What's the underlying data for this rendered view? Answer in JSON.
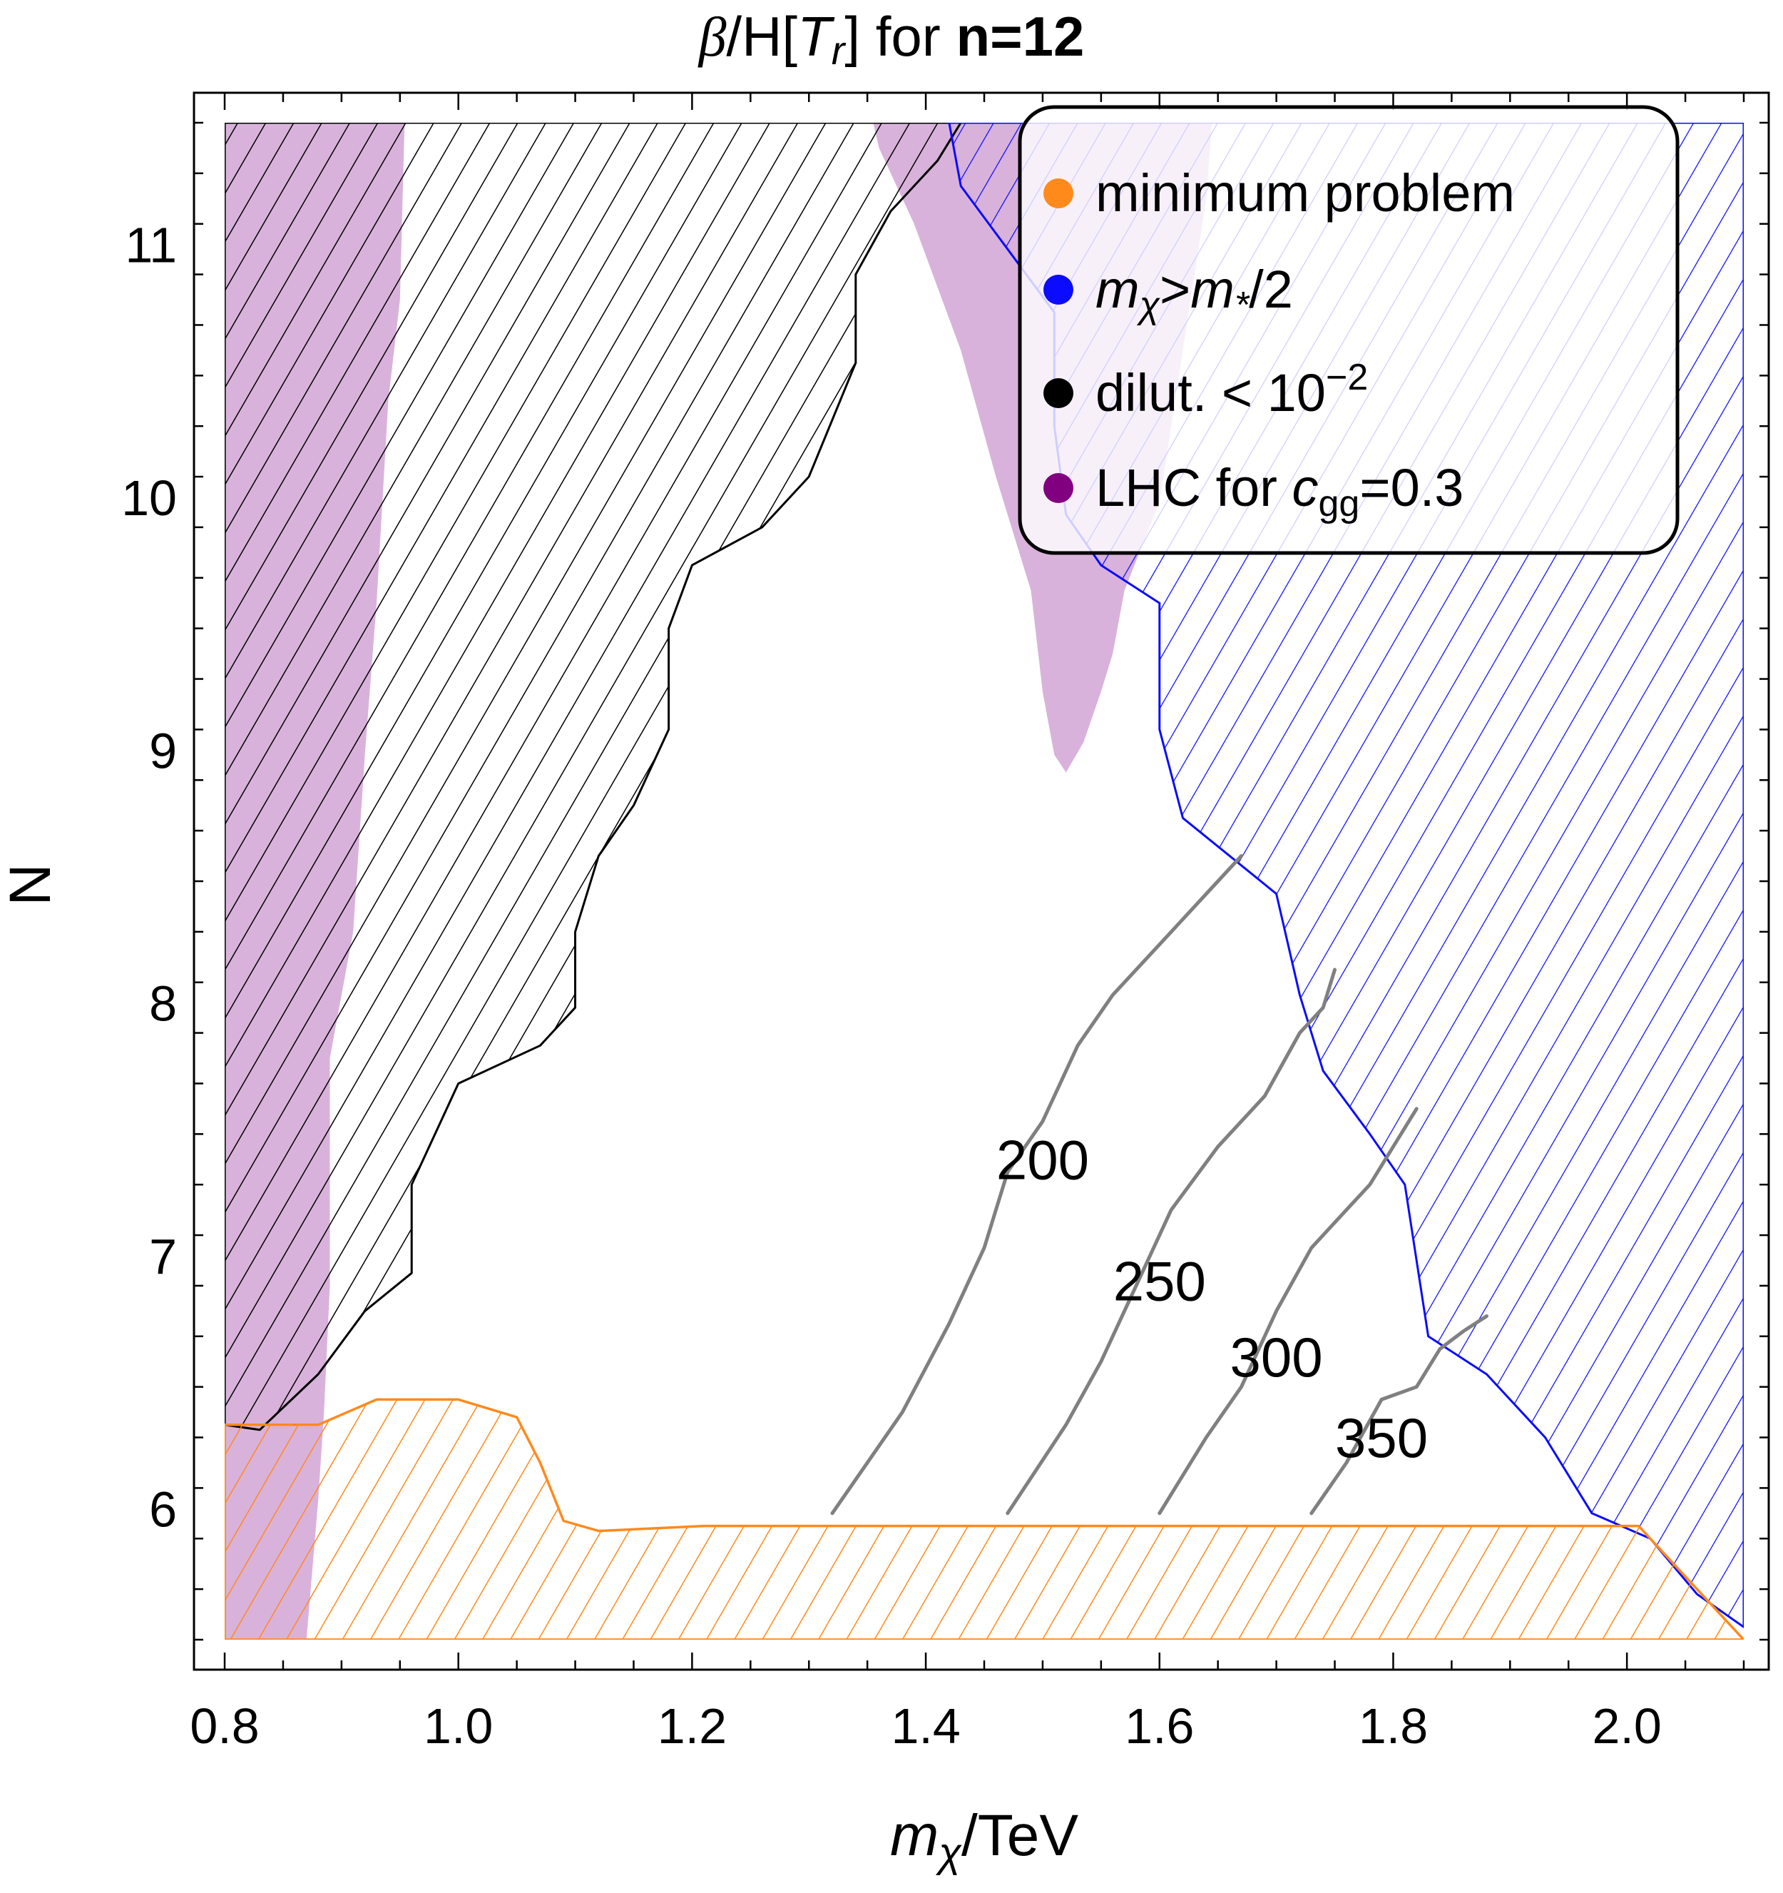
{
  "chart_data": {
    "type": "contour",
    "title": {
      "prefix": "β",
      "mid": "/H[",
      "var": "T",
      "sub": "r",
      "suffix": "] for ",
      "bold": "n=12"
    },
    "xlabel": {
      "var": "m",
      "sub": "χ",
      "rest": "/TeV"
    },
    "ylabel": "N",
    "xlim": [
      0.8,
      2.1
    ],
    "ylim": [
      5.5,
      11.5
    ],
    "x_ticks": [
      0.8,
      1.0,
      1.2,
      1.4,
      1.6,
      1.8,
      2.0
    ],
    "x_tick_labels": [
      "0.8",
      "1.0",
      "1.2",
      "1.4",
      "1.6",
      "1.8",
      "2.0"
    ],
    "y_ticks": [
      6,
      7,
      8,
      9,
      10,
      11
    ],
    "y_tick_labels": [
      "6",
      "7",
      "8",
      "9",
      "10",
      "11"
    ],
    "legend_position": "top-right",
    "legend": [
      {
        "label": "minimum problem",
        "color": "#ff8a1c"
      },
      {
        "label_parts": {
          "v1": "m",
          "s1": "χ",
          "op": ">",
          "v2": "m",
          "s2": "*",
          "tail": "/2"
        },
        "color": "#0b0bff"
      },
      {
        "label_parts": {
          "text": "dilut. < 10",
          "sup": "−2"
        },
        "color": "#000000"
      },
      {
        "label_parts": {
          "text": "LHC for ",
          "var": "c",
          "sub": "gg",
          "tail": "=0.3"
        },
        "color": "#800080"
      }
    ],
    "regions": {
      "minimum_problem": {
        "color": "#ff8a1c",
        "boundary": [
          [
            0.8,
            6.35
          ],
          [
            0.88,
            6.35
          ],
          [
            0.93,
            6.45
          ],
          [
            1.0,
            6.45
          ],
          [
            1.05,
            6.38
          ],
          [
            1.07,
            6.2
          ],
          [
            1.09,
            5.97
          ],
          [
            1.12,
            5.93
          ],
          [
            1.21,
            5.95
          ],
          [
            2.01,
            5.95
          ],
          [
            2.1,
            5.5
          ],
          [
            0.8,
            5.5
          ]
        ]
      },
      "dilution": {
        "color": "#000000",
        "boundary": [
          [
            0.8,
            11.5
          ],
          [
            1.43,
            11.5
          ],
          [
            1.41,
            11.35
          ],
          [
            1.37,
            11.15
          ],
          [
            1.34,
            10.9
          ],
          [
            1.34,
            10.55
          ],
          [
            1.3,
            10.1
          ],
          [
            1.26,
            9.9
          ],
          [
            1.2,
            9.75
          ],
          [
            1.18,
            9.5
          ],
          [
            1.18,
            9.1
          ],
          [
            1.15,
            8.8
          ],
          [
            1.12,
            8.6
          ],
          [
            1.1,
            8.3
          ],
          [
            1.1,
            8.0
          ],
          [
            1.07,
            7.85
          ],
          [
            1.0,
            7.7
          ],
          [
            0.96,
            7.3
          ],
          [
            0.96,
            6.95
          ],
          [
            0.92,
            6.8
          ],
          [
            0.88,
            6.55
          ],
          [
            0.83,
            6.33
          ],
          [
            0.8,
            6.35
          ]
        ]
      },
      "m_chi_gt_m_star_half": {
        "color": "#0b0bff",
        "boundary": [
          [
            1.42,
            11.5
          ],
          [
            2.1,
            11.5
          ],
          [
            2.1,
            5.55
          ],
          [
            2.06,
            5.68
          ],
          [
            2.02,
            5.9
          ],
          [
            1.97,
            6.0
          ],
          [
            1.93,
            6.3
          ],
          [
            1.88,
            6.55
          ],
          [
            1.83,
            6.7
          ],
          [
            1.82,
            7.0
          ],
          [
            1.81,
            7.3
          ],
          [
            1.78,
            7.5
          ],
          [
            1.74,
            7.75
          ],
          [
            1.72,
            8.05
          ],
          [
            1.7,
            8.45
          ],
          [
            1.66,
            8.6
          ],
          [
            1.62,
            8.75
          ],
          [
            1.6,
            9.1
          ],
          [
            1.6,
            9.6
          ],
          [
            1.55,
            9.75
          ],
          [
            1.52,
            9.95
          ],
          [
            1.51,
            10.3
          ],
          [
            1.51,
            10.75
          ],
          [
            1.47,
            11.0
          ],
          [
            1.43,
            11.25
          ]
        ]
      },
      "lhc_left": {
        "color": "#d9b2db",
        "boundary": [
          [
            0.8,
            11.5
          ],
          [
            0.954,
            11.5
          ],
          [
            0.95,
            10.8
          ],
          [
            0.94,
            10.4
          ],
          [
            0.93,
            9.6
          ],
          [
            0.92,
            9.0
          ],
          [
            0.91,
            8.3
          ],
          [
            0.89,
            7.8
          ],
          [
            0.89,
            6.9
          ],
          [
            0.885,
            6.4
          ],
          [
            0.88,
            6.05
          ],
          [
            0.87,
            5.5
          ],
          [
            0.8,
            5.5
          ]
        ]
      },
      "lhc_center": {
        "color": "#d9b2db",
        "boundary": [
          [
            1.355,
            11.5
          ],
          [
            1.645,
            11.5
          ],
          [
            1.64,
            11.2
          ],
          [
            1.62,
            10.6
          ],
          [
            1.6,
            10.0
          ],
          [
            1.57,
            9.65
          ],
          [
            1.56,
            9.4
          ],
          [
            1.55,
            9.25
          ],
          [
            1.535,
            9.05
          ],
          [
            1.52,
            8.93
          ],
          [
            1.51,
            9.0
          ],
          [
            1.5,
            9.25
          ],
          [
            1.49,
            9.65
          ],
          [
            1.46,
            10.1
          ],
          [
            1.43,
            10.6
          ],
          [
            1.39,
            11.1
          ],
          [
            1.36,
            11.4
          ]
        ]
      }
    },
    "contours": [
      {
        "label": "200",
        "label_at": [
          1.5,
          7.38
        ],
        "points": [
          [
            1.32,
            6.0
          ],
          [
            1.38,
            6.4
          ],
          [
            1.42,
            6.75
          ],
          [
            1.45,
            7.05
          ],
          [
            1.47,
            7.35
          ],
          [
            1.5,
            7.55
          ],
          [
            1.53,
            7.85
          ],
          [
            1.56,
            8.05
          ],
          [
            1.61,
            8.3
          ],
          [
            1.65,
            8.5
          ],
          [
            1.67,
            8.6
          ]
        ]
      },
      {
        "label": "250",
        "label_at": [
          1.6,
          6.9
        ],
        "points": [
          [
            1.47,
            6.0
          ],
          [
            1.52,
            6.35
          ],
          [
            1.55,
            6.6
          ],
          [
            1.58,
            6.9
          ],
          [
            1.61,
            7.2
          ],
          [
            1.65,
            7.45
          ],
          [
            1.69,
            7.65
          ],
          [
            1.72,
            7.9
          ],
          [
            1.74,
            8.0
          ],
          [
            1.75,
            8.15
          ]
        ]
      },
      {
        "label": "300",
        "label_at": [
          1.7,
          6.6
        ],
        "points": [
          [
            1.6,
            6.0
          ],
          [
            1.64,
            6.3
          ],
          [
            1.67,
            6.5
          ],
          [
            1.7,
            6.8
          ],
          [
            1.73,
            7.05
          ],
          [
            1.76,
            7.2
          ],
          [
            1.78,
            7.3
          ],
          [
            1.8,
            7.45
          ],
          [
            1.82,
            7.6
          ]
        ]
      },
      {
        "label": "350",
        "label_at": [
          1.79,
          6.28
        ],
        "points": [
          [
            1.73,
            6.0
          ],
          [
            1.76,
            6.2
          ],
          [
            1.79,
            6.45
          ],
          [
            1.82,
            6.5
          ],
          [
            1.84,
            6.65
          ],
          [
            1.86,
            6.72
          ],
          [
            1.88,
            6.78
          ]
        ]
      }
    ]
  }
}
